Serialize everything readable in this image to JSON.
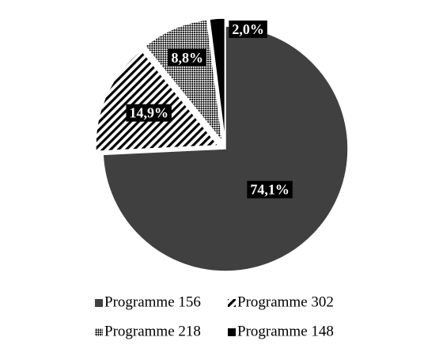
{
  "chart_data": {
    "type": "pie",
    "categories": [
      "Programme 156",
      "Programme 302",
      "Programme 218",
      "Programme 148"
    ],
    "values": [
      74.1,
      14.9,
      8.8,
      2.0
    ],
    "value_labels": [
      "74,1%",
      "14,9%",
      "8,8%",
      "2,0%"
    ],
    "colors": [
      "#404040",
      "#000000",
      "#000000",
      "#000000"
    ],
    "patterns": [
      "solid",
      "hatch",
      "crosshatch",
      "solid"
    ],
    "legend": "bottom"
  }
}
